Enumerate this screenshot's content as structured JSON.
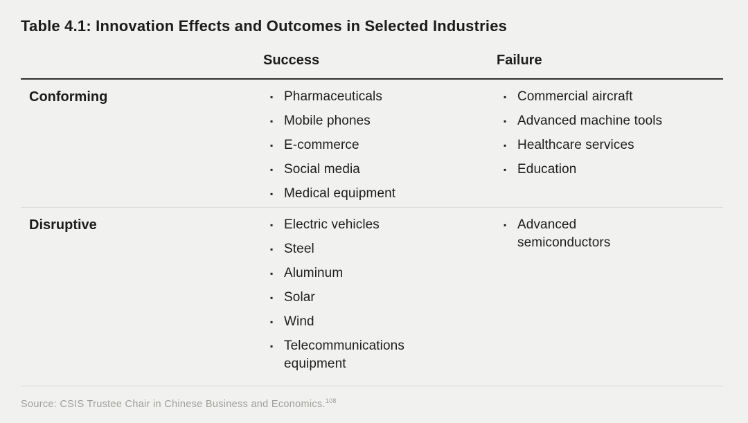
{
  "title": "Table 4.1: Innovation Effects and Outcomes in Selected Industries",
  "table": {
    "columns": [
      "Success",
      "Failure"
    ],
    "rows": [
      {
        "label": "Conforming",
        "success": [
          "Pharmaceuticals",
          "Mobile phones",
          "E-commerce",
          "Social media",
          "Medical equipment"
        ],
        "failure": [
          "Commercial aircraft",
          "Advanced machine tools",
          "Healthcare services",
          "Education"
        ]
      },
      {
        "label": "Disruptive",
        "success": [
          "Electric vehicles",
          "Steel",
          "Aluminum",
          "Solar",
          "Wind",
          "Telecommunications equipment"
        ],
        "failure": [
          "Advanced semiconductors"
        ]
      }
    ]
  },
  "source": {
    "text": "Source: CSIS Trustee Chair in Chinese Business and Economics.",
    "footnote_ref": "108"
  },
  "icons": {
    "bullet": "▪"
  },
  "colors": {
    "background": "#f1f1ef",
    "text": "#1c1c1c",
    "header_rule": "#2e2e2e",
    "row_divider": "#d8d8d5",
    "source_text": "#9e9e9b"
  }
}
